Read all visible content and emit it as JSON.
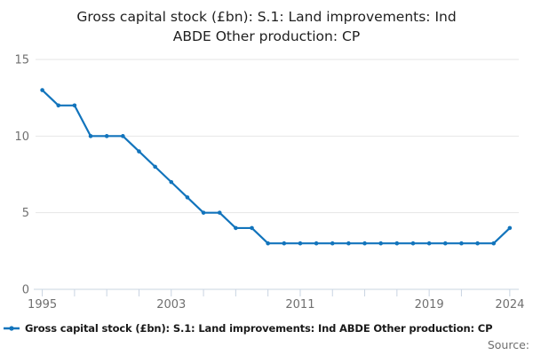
{
  "title_lines": [
    "Gross capital stock (£bn): S.1: Land improvements: Ind",
    "ABDE Other production: CP"
  ],
  "legend": {
    "label": "Gross capital stock (£bn): S.1: Land improvements: Ind ABDE Other production: CP",
    "marker": "line-with-dot"
  },
  "source_label": "Source:",
  "colors": {
    "line": "#1274bc",
    "grid": "#e6e6e6",
    "axis": "#c9d4e2",
    "tick_label": "#707070",
    "title": "#1f1f1f"
  },
  "chart_data": {
    "type": "line",
    "title": "Gross capital stock (£bn): S.1: Land improvements: Ind ABDE Other production: CP",
    "series": [
      {
        "name": "Gross capital stock (£bn): S.1: Land improvements: Ind ABDE Other production: CP",
        "x": [
          1995,
          1996,
          1997,
          1998,
          1999,
          2000,
          2001,
          2002,
          2003,
          2004,
          2005,
          2006,
          2007,
          2008,
          2009,
          2010,
          2011,
          2012,
          2013,
          2014,
          2015,
          2016,
          2017,
          2018,
          2019,
          2020,
          2021,
          2022,
          2023,
          2024
        ],
        "values": [
          13,
          12,
          12,
          10,
          10,
          10,
          9,
          8,
          7,
          6,
          5,
          5,
          4,
          4,
          3,
          3,
          3,
          3,
          3,
          3,
          3,
          3,
          3,
          3,
          3,
          3,
          3,
          3,
          3,
          4
        ]
      }
    ],
    "xlabel": "",
    "ylabel": "",
    "ylim": [
      0,
      15
    ],
    "y_ticks": [
      0,
      5,
      10,
      15
    ],
    "x_tick_marks": [
      1995,
      1997,
      1999,
      2001,
      2003,
      2005,
      2007,
      2009,
      2011,
      2013,
      2015,
      2017,
      2019,
      2021,
      2024
    ],
    "x_tick_labels": [
      1995,
      2003,
      2011,
      2019,
      2024
    ],
    "grid": "horizontal-only",
    "marker": "dot",
    "legend_position": "bottom-left"
  }
}
